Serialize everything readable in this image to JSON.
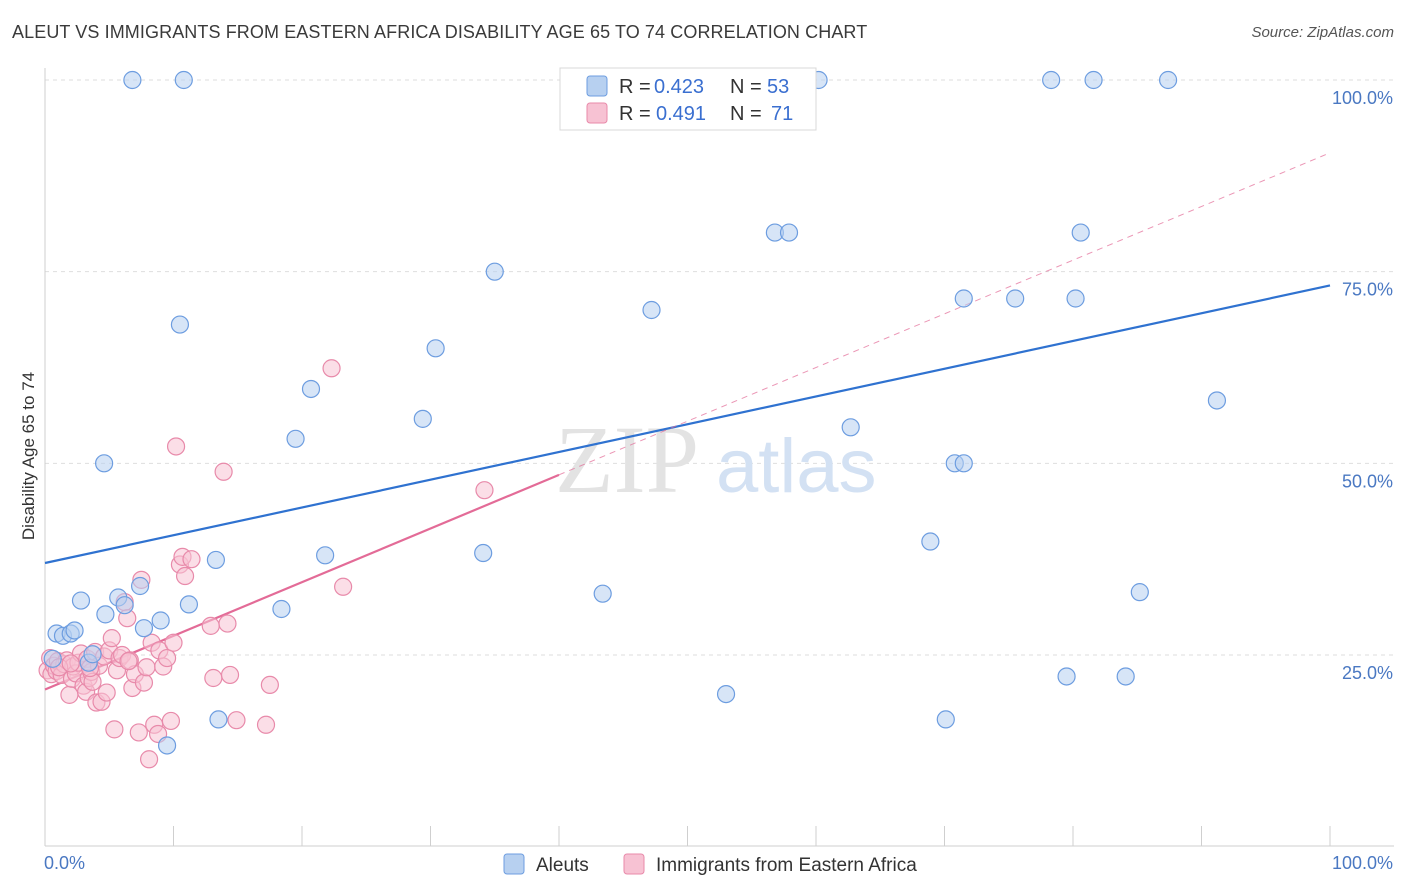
{
  "title": "ALEUT VS IMMIGRANTS FROM EASTERN AFRICA DISABILITY AGE 65 TO 74 CORRELATION CHART",
  "source": "Source: ZipAtlas.com",
  "watermark": {
    "zip": "ZIP",
    "atlas": "atlas"
  },
  "colors": {
    "blue_fill": "#b7d0f0",
    "blue_stroke": "#6d9de0",
    "blue_line": "#2f72d0",
    "pink_fill": "#f7c2d3",
    "pink_stroke": "#e88aaa",
    "pink_line": "#e36b97",
    "grid": "#dedede",
    "axis_label": "#4a78c2"
  },
  "legend_top": {
    "rows": [
      {
        "r_label": "R =",
        "r_value": "0.423",
        "n_label": "N =",
        "n_value": "53"
      },
      {
        "r_label": "R =",
        "r_value": "0.491",
        "n_label": "N =",
        "n_value": "71"
      }
    ]
  },
  "legend_bottom": [
    "Aleuts",
    "Immigrants from Eastern Africa"
  ],
  "chart_data": {
    "type": "scatter",
    "title": "ALEUT VS IMMIGRANTS FROM EASTERN AFRICA DISABILITY AGE 65 TO 74 CORRELATION CHART",
    "xlabel": "",
    "ylabel": "Disability Age 65 to 74",
    "xlim": [
      0,
      100
    ],
    "ylim": [
      0,
      102
    ],
    "x_tick_labels": [
      "0.0%",
      "100.0%"
    ],
    "y_ticks": [
      25,
      50,
      75,
      100
    ],
    "y_tick_labels": [
      "25.0%",
      "50.0%",
      "75.0%",
      "100.0%"
    ],
    "grid": true,
    "legend_position": "top-center",
    "series": [
      {
        "name": "Aleuts",
        "R": 0.423,
        "N": 53,
        "trend": {
          "x": [
            0,
            100
          ],
          "y": [
            37.0,
            73.2
          ]
        },
        "points": [
          [
            0.6,
            24.5
          ],
          [
            0.9,
            27.8
          ],
          [
            1.4,
            27.5
          ],
          [
            2.0,
            27.8
          ],
          [
            2.3,
            28.2
          ],
          [
            2.8,
            32.1
          ],
          [
            3.4,
            24.0
          ],
          [
            3.7,
            25.1
          ],
          [
            4.6,
            50.0
          ],
          [
            4.7,
            30.3
          ],
          [
            5.7,
            32.5
          ],
          [
            6.2,
            31.5
          ],
          [
            6.8,
            100.0
          ],
          [
            7.4,
            34.0
          ],
          [
            7.7,
            28.5
          ],
          [
            9.0,
            29.5
          ],
          [
            9.5,
            13.2
          ],
          [
            10.5,
            68.1
          ],
          [
            10.8,
            100.0
          ],
          [
            11.2,
            31.6
          ],
          [
            13.3,
            37.4
          ],
          [
            13.5,
            16.6
          ],
          [
            18.4,
            31.0
          ],
          [
            19.5,
            53.2
          ],
          [
            20.7,
            59.7
          ],
          [
            21.8,
            38.0
          ],
          [
            29.4,
            55.8
          ],
          [
            30.4,
            65.0
          ],
          [
            34.1,
            38.3
          ],
          [
            35.0,
            75.0
          ],
          [
            43.4,
            33.0
          ],
          [
            47.2,
            70.0
          ],
          [
            53.0,
            19.9
          ],
          [
            55.2,
            100.0
          ],
          [
            56.8,
            80.1
          ],
          [
            57.9,
            80.1
          ],
          [
            60.2,
            100.0
          ],
          [
            62.7,
            54.7
          ],
          [
            68.9,
            39.8
          ],
          [
            70.1,
            16.6
          ],
          [
            70.8,
            50.0
          ],
          [
            71.5,
            50.0
          ],
          [
            71.5,
            71.5
          ],
          [
            75.5,
            71.5
          ],
          [
            78.3,
            100.0
          ],
          [
            79.5,
            22.2
          ],
          [
            80.2,
            71.5
          ],
          [
            80.6,
            80.1
          ],
          [
            81.6,
            100.0
          ],
          [
            84.1,
            22.2
          ],
          [
            85.2,
            33.2
          ],
          [
            87.4,
            100.0
          ],
          [
            91.2,
            58.2
          ]
        ]
      },
      {
        "name": "Immigrants from Eastern Africa",
        "R": 0.491,
        "N": 71,
        "trend": {
          "x": [
            0,
            40
          ],
          "y": [
            20.5,
            48.5
          ]
        },
        "trend_ext": {
          "x": [
            40,
            100
          ],
          "y": [
            48.5,
            90.5
          ]
        },
        "points": [
          [
            0.2,
            23.0
          ],
          [
            0.4,
            24.6
          ],
          [
            0.5,
            22.5
          ],
          [
            0.7,
            23.6
          ],
          [
            0.9,
            22.9
          ],
          [
            1.0,
            24.2
          ],
          [
            1.3,
            22.4
          ],
          [
            1.5,
            23.8
          ],
          [
            1.7,
            24.3
          ],
          [
            1.9,
            19.8
          ],
          [
            2.1,
            21.9
          ],
          [
            2.2,
            23.5
          ],
          [
            2.4,
            22.6
          ],
          [
            2.6,
            24.0
          ],
          [
            2.8,
            25.2
          ],
          [
            3.0,
            21.0
          ],
          [
            3.2,
            20.2
          ],
          [
            3.3,
            24.5
          ],
          [
            3.4,
            22.0
          ],
          [
            3.6,
            22.8
          ],
          [
            3.7,
            21.5
          ],
          [
            3.9,
            25.4
          ],
          [
            4.0,
            18.8
          ],
          [
            4.2,
            23.6
          ],
          [
            4.4,
            18.9
          ],
          [
            4.6,
            24.8
          ],
          [
            4.8,
            20.1
          ],
          [
            5.0,
            25.6
          ],
          [
            5.2,
            27.2
          ],
          [
            5.4,
            15.3
          ],
          [
            5.6,
            23.0
          ],
          [
            5.8,
            24.6
          ],
          [
            6.0,
            25.0
          ],
          [
            6.2,
            31.9
          ],
          [
            6.4,
            29.8
          ],
          [
            6.6,
            24.3
          ],
          [
            6.8,
            20.7
          ],
          [
            7.0,
            22.5
          ],
          [
            7.3,
            14.9
          ],
          [
            7.5,
            34.8
          ],
          [
            7.7,
            21.4
          ],
          [
            7.9,
            23.4
          ],
          [
            8.1,
            11.4
          ],
          [
            8.3,
            26.6
          ],
          [
            8.5,
            15.9
          ],
          [
            8.8,
            14.7
          ],
          [
            8.9,
            25.6
          ],
          [
            9.2,
            23.5
          ],
          [
            9.5,
            24.6
          ],
          [
            9.8,
            16.4
          ],
          [
            10.0,
            26.6
          ],
          [
            10.2,
            52.2
          ],
          [
            10.5,
            36.8
          ],
          [
            10.7,
            37.8
          ],
          [
            10.9,
            35.3
          ],
          [
            11.4,
            37.5
          ],
          [
            12.9,
            28.8
          ],
          [
            13.1,
            22.0
          ],
          [
            13.9,
            48.9
          ],
          [
            14.2,
            29.1
          ],
          [
            14.4,
            22.4
          ],
          [
            14.9,
            16.5
          ],
          [
            17.2,
            15.9
          ],
          [
            17.5,
            21.1
          ],
          [
            22.3,
            62.4
          ],
          [
            23.2,
            33.9
          ],
          [
            34.2,
            46.5
          ],
          [
            1.1,
            23.4
          ],
          [
            2.0,
            23.9
          ],
          [
            3.5,
            23.3
          ],
          [
            6.5,
            24.2
          ]
        ]
      }
    ]
  }
}
